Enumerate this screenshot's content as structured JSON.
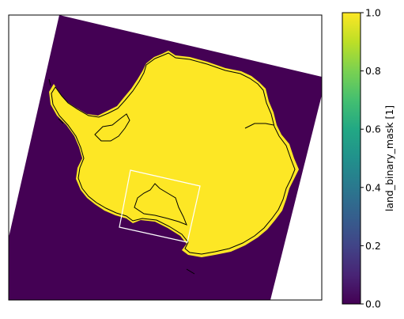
{
  "colors": {
    "ocean": "#440154",
    "land": "#fde725",
    "coastline": "#000000",
    "inset_box": "#ffffff",
    "background": "#ffffff"
  },
  "chart_data": {
    "type": "heatmap",
    "title": "",
    "colorbar": {
      "label": "land_binary_mask [1]",
      "colormap": "viridis",
      "range": [
        0.0,
        1.0
      ],
      "ticks": [
        {
          "value": 0.0,
          "label": "0.0"
        },
        {
          "value": 0.2,
          "label": "0.2"
        },
        {
          "value": 0.4,
          "label": "0.4"
        },
        {
          "value": 0.6,
          "label": "0.6"
        },
        {
          "value": 0.8,
          "label": "0.8"
        },
        {
          "value": 1.0,
          "label": "1.0"
        }
      ]
    },
    "values_present": [
      0,
      1
    ],
    "features": [
      "ocean",
      "land",
      "coastline",
      "inset-box"
    ]
  }
}
